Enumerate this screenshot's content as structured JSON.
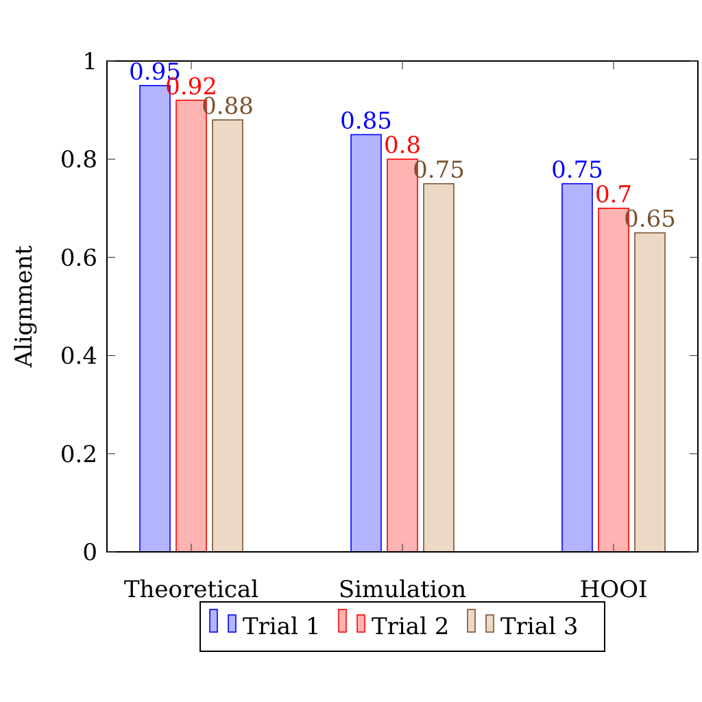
{
  "chart_data": {
    "type": "bar",
    "title": "",
    "xlabel": "",
    "ylabel": "Alignment",
    "categories": [
      "Theoretical",
      "Simulation",
      "HOOI"
    ],
    "ylim": [
      0,
      1
    ],
    "yticks": [
      0,
      0.2,
      0.4,
      0.6,
      0.8,
      1
    ],
    "ytick_labels": [
      "0",
      "0.2",
      "0.4",
      "0.6",
      "0.8",
      "1"
    ],
    "grid": false,
    "legend_position": "bottom-center",
    "series": [
      {
        "name": "Trial 1",
        "values": [
          0.95,
          0.85,
          0.75
        ],
        "labels": [
          "0.95",
          "0.85",
          "0.75"
        ],
        "stroke": "#0000ff",
        "fill": "#b3b3ff"
      },
      {
        "name": "Trial 2",
        "values": [
          0.92,
          0.8,
          0.7
        ],
        "labels": [
          "0.92",
          "0.8",
          "0.7"
        ],
        "stroke": "#ff0000",
        "fill": "#ffb3b3"
      },
      {
        "name": "Trial 3",
        "values": [
          0.88,
          0.75,
          0.65
        ],
        "labels": [
          "0.88",
          "0.75",
          "0.65"
        ],
        "stroke": "#7a5230",
        "fill": "#ebd9c5"
      }
    ]
  }
}
